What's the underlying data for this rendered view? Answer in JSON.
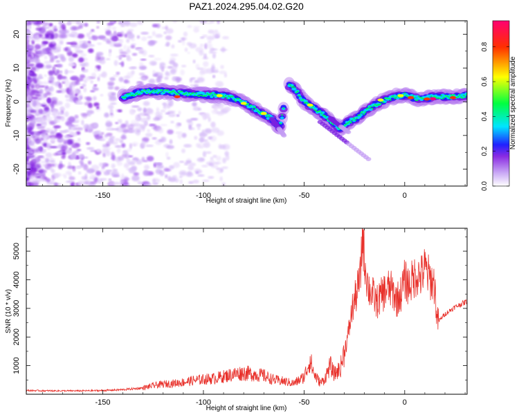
{
  "title": "PAZ1.2024.295.04.02.G20",
  "chart_data": [
    {
      "type": "heatmap",
      "title": "PAZ1.2024.295.04.02.G20",
      "xlabel": "Height of straight line (km)",
      "ylabel": "Frequency (Hz)",
      "xlim": [
        -188,
        31
      ],
      "ylim": [
        -25,
        24
      ],
      "x_ticks": [
        -150,
        -100,
        -50,
        0
      ],
      "y_ticks": [
        -20,
        -10,
        0,
        10,
        20
      ],
      "colorbar": {
        "label": "Normalized spectral amplitude",
        "range": [
          0.0,
          0.95
        ],
        "ticks": [
          0.0,
          0.2,
          0.4,
          0.6,
          0.8
        ],
        "stops": [
          "#ffffff",
          "#c9a8f5",
          "#8a2be2",
          "#2020ff",
          "#00e5ff",
          "#00ff40",
          "#ffff00",
          "#ff3000",
          "#ff0070"
        ]
      },
      "ridge": {
        "x": [
          -140,
          -130,
          -120,
          -110,
          -100,
          -92,
          -85,
          -78,
          -72,
          -66,
          -62,
          -58,
          -55,
          -50,
          -45,
          -40,
          -36,
          -32,
          -28,
          -24,
          -20,
          -15,
          -10,
          -5,
          0,
          5,
          10,
          15,
          20,
          25,
          31
        ],
        "y": [
          1.5,
          3,
          3,
          2.5,
          2,
          2,
          1,
          -1,
          -3,
          -5,
          -8,
          5,
          4,
          0,
          -2,
          -4,
          -6,
          -8,
          -6,
          -5,
          -3,
          -1,
          0.5,
          1.5,
          2,
          1,
          1,
          1.5,
          1.5,
          1.5,
          1.8
        ]
      }
    },
    {
      "type": "line",
      "xlabel": "Height of straight line (km)",
      "ylabel": "SNR (10 * v/v)",
      "xlim": [
        -188,
        31
      ],
      "ylim": [
        0,
        5800
      ],
      "x_ticks": [
        -150,
        -100,
        -50,
        0
      ],
      "y_ticks": [
        1000,
        2000,
        3000,
        4000,
        5000
      ],
      "color": "#e8302a",
      "series": [
        {
          "x": [
            -188,
            -175,
            -160,
            -150,
            -140,
            -130,
            -125,
            -120,
            -115,
            -110,
            -105,
            -100,
            -95,
            -90,
            -85,
            -80,
            -75,
            -70,
            -65,
            -60,
            -55,
            -50,
            -47,
            -45,
            -42,
            -40,
            -37,
            -35,
            -32,
            -30,
            -28,
            -26,
            -24,
            -22,
            -21,
            -20,
            -18,
            -16,
            -14,
            -12,
            -10,
            -8,
            -6,
            -4,
            -2,
            0,
            2,
            4,
            6,
            8,
            10,
            12,
            14,
            15,
            16,
            17,
            18,
            20,
            22,
            25,
            28,
            31
          ],
          "y": [
            130,
            120,
            120,
            130,
            160,
            220,
            300,
            350,
            380,
            420,
            480,
            520,
            550,
            620,
            700,
            750,
            700,
            650,
            500,
            450,
            380,
            600,
            1200,
            700,
            400,
            500,
            1000,
            700,
            900,
            1500,
            2100,
            3000,
            3500,
            4100,
            5700,
            4700,
            3700,
            3500,
            3200,
            3400,
            3600,
            3700,
            3600,
            3300,
            3500,
            4000,
            3800,
            4000,
            4200,
            4100,
            4400,
            4100,
            3900,
            3800,
            2600,
            2550,
            2650,
            2800,
            2900,
            3050,
            3150,
            3250
          ]
        }
      ]
    }
  ]
}
